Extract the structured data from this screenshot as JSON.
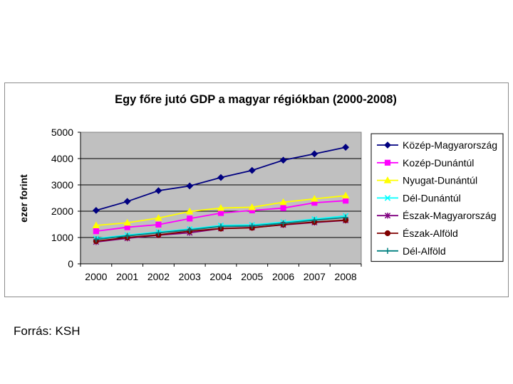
{
  "source_text": "Forrás: KSH",
  "chart_data": {
    "type": "line",
    "title": "Egy főre jutó GDP a magyar régiókban (2000-2008)",
    "xlabel": "",
    "ylabel": "ezer forint",
    "ylim": [
      0,
      5000
    ],
    "yticks": [
      0,
      1000,
      2000,
      3000,
      4000,
      5000
    ],
    "categories": [
      "2000",
      "2001",
      "2002",
      "2003",
      "2004",
      "2005",
      "2006",
      "2007",
      "2008"
    ],
    "grid": "horizontal",
    "plot_background": "#c0c0c0",
    "legend_position": "right",
    "series": [
      {
        "name": "Közép-Magyarország",
        "color": "#000080",
        "marker": "diamond",
        "values": [
          2030,
          2370,
          2780,
          2960,
          3280,
          3550,
          3940,
          4180,
          4430
        ]
      },
      {
        "name": "Kozép-Dunántúl",
        "color": "#ff00ff",
        "marker": "square",
        "values": [
          1240,
          1390,
          1490,
          1720,
          1930,
          2030,
          2120,
          2320,
          2400
        ]
      },
      {
        "name": "Nyugat-Dunántúl",
        "color": "#ffff00",
        "marker": "triangle",
        "values": [
          1460,
          1560,
          1740,
          1990,
          2120,
          2150,
          2340,
          2470,
          2590
        ]
      },
      {
        "name": "Dél-Dunántúl",
        "color": "#00ffff",
        "marker": "x",
        "values": [
          960,
          1090,
          1210,
          1320,
          1460,
          1480,
          1580,
          1700,
          1820
        ]
      },
      {
        "name": "Észak-Magyarország",
        "color": "#800080",
        "marker": "star",
        "values": [
          830,
          970,
          1090,
          1180,
          1340,
          1380,
          1480,
          1570,
          1650
        ]
      },
      {
        "name": "Észak-Alföld",
        "color": "#800000",
        "marker": "circle",
        "values": [
          860,
          1000,
          1100,
          1240,
          1340,
          1370,
          1490,
          1590,
          1660
        ]
      },
      {
        "name": "Dél-Alföld",
        "color": "#008080",
        "marker": "plus",
        "values": [
          930,
          1060,
          1180,
          1290,
          1420,
          1440,
          1540,
          1660,
          1760
        ]
      }
    ]
  }
}
